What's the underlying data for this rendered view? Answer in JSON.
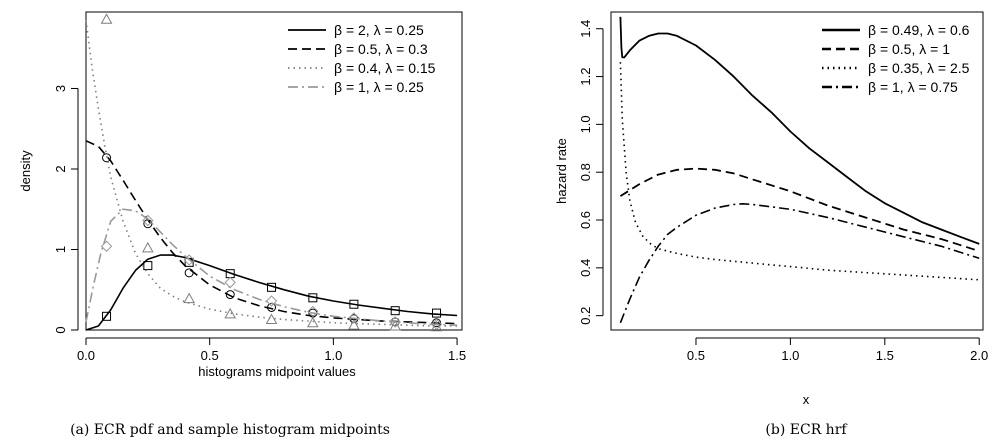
{
  "chart_data": [
    {
      "type": "line",
      "caption": "(a) ECR pdf and sample histogram midpoints",
      "xlabel": "histograms midpoint values",
      "ylabel": "density",
      "xlim": [
        0,
        1.52
      ],
      "ylim": [
        0,
        3.95
      ],
      "xticks": [
        0.0,
        0.5,
        1.0,
        1.5
      ],
      "xtick_labels": [
        "0.0",
        "0.5",
        "1.0",
        "1.5"
      ],
      "yticks": [
        0,
        1,
        2,
        3
      ],
      "ytick_labels": [
        "0",
        "1",
        "2",
        "3"
      ],
      "legend_position": "top-right",
      "series": [
        {
          "name": "β = 2, λ = 0.25",
          "color": "#000000",
          "style": "solid",
          "x": [
            0.0,
            0.05,
            0.1,
            0.15,
            0.2,
            0.25,
            0.3,
            0.35,
            0.4,
            0.5,
            0.6,
            0.7,
            0.8,
            0.9,
            1.0,
            1.1,
            1.2,
            1.3,
            1.4,
            1.5
          ],
          "y": [
            0.0,
            0.05,
            0.25,
            0.52,
            0.74,
            0.88,
            0.93,
            0.93,
            0.9,
            0.8,
            0.69,
            0.59,
            0.5,
            0.42,
            0.36,
            0.31,
            0.27,
            0.23,
            0.2,
            0.18
          ],
          "points": {
            "marker": "square",
            "x": [
              0.083,
              0.25,
              0.417,
              0.583,
              0.75,
              0.917,
              1.083,
              1.25,
              1.417
            ],
            "y": [
              0.17,
              0.8,
              0.84,
              0.7,
              0.53,
              0.4,
              0.32,
              0.24,
              0.21
            ]
          }
        },
        {
          "name": "β = 0.5, λ = 0.3",
          "color": "#000000",
          "style": "dashed",
          "x": [
            0.0,
            0.05,
            0.1,
            0.15,
            0.2,
            0.25,
            0.3,
            0.35,
            0.4,
            0.5,
            0.6,
            0.7,
            0.8,
            0.9,
            1.0,
            1.1,
            1.2,
            1.3,
            1.4,
            1.5
          ],
          "y": [
            2.35,
            2.28,
            2.1,
            1.86,
            1.61,
            1.37,
            1.15,
            0.96,
            0.8,
            0.56,
            0.4,
            0.3,
            0.23,
            0.18,
            0.15,
            0.13,
            0.11,
            0.1,
            0.09,
            0.08
          ],
          "points": {
            "marker": "circle",
            "x": [
              0.083,
              0.25,
              0.417,
              0.583,
              0.75,
              0.917,
              1.083,
              1.25,
              1.417
            ],
            "y": [
              2.14,
              1.32,
              0.71,
              0.44,
              0.28,
              0.21,
              0.14,
              0.1,
              0.09
            ]
          }
        },
        {
          "name": "β = 0.4, λ = 0.15",
          "color": "#7f7f7f",
          "style": "dotted",
          "x": [
            0.0,
            0.025,
            0.05,
            0.075,
            0.1,
            0.15,
            0.2,
            0.25,
            0.3,
            0.35,
            0.4,
            0.5,
            0.6,
            0.7,
            0.8,
            0.9,
            1.0,
            1.1,
            1.2,
            1.3,
            1.4,
            1.5
          ],
          "y": [
            3.85,
            3.25,
            2.75,
            2.3,
            1.9,
            1.35,
            0.95,
            0.7,
            0.52,
            0.42,
            0.35,
            0.26,
            0.2,
            0.16,
            0.13,
            0.11,
            0.09,
            0.08,
            0.07,
            0.06,
            0.05,
            0.05
          ],
          "points": {
            "marker": "triangle",
            "x": [
              0.083,
              0.25,
              0.417,
              0.583,
              0.75,
              0.917,
              1.083,
              1.25,
              1.417
            ],
            "y": [
              3.86,
              1.02,
              0.39,
              0.2,
              0.13,
              0.09,
              0.06,
              0.05,
              0.04
            ]
          }
        },
        {
          "name": "β = 1, λ = 0.25",
          "color": "#9a9a9a",
          "style": "dashdot",
          "x": [
            0.0,
            0.03,
            0.06,
            0.1,
            0.15,
            0.2,
            0.25,
            0.3,
            0.35,
            0.4,
            0.5,
            0.6,
            0.7,
            0.8,
            0.9,
            1.0,
            1.1,
            1.2,
            1.3,
            1.4,
            1.5
          ],
          "y": [
            0.1,
            0.55,
            0.95,
            1.35,
            1.5,
            1.48,
            1.38,
            1.22,
            1.06,
            0.92,
            0.67,
            0.5,
            0.38,
            0.29,
            0.22,
            0.17,
            0.14,
            0.11,
            0.09,
            0.07,
            0.06
          ],
          "points": {
            "marker": "diamond",
            "x": [
              0.083,
              0.25,
              0.417,
              0.583,
              0.75,
              0.917,
              1.083,
              1.25,
              1.417
            ],
            "y": [
              1.04,
              1.36,
              0.87,
              0.59,
              0.36,
              0.23,
              0.15,
              0.1,
              0.07
            ]
          }
        }
      ]
    },
    {
      "type": "line",
      "caption": "(b) ECR hrf",
      "xlabel": "x",
      "ylabel": "hazard rate",
      "xlim": [
        0.05,
        2.02
      ],
      "ylim": [
        0.14,
        1.47
      ],
      "xticks": [
        0.5,
        1.0,
        1.5,
        2.0
      ],
      "xtick_labels": [
        "0.5",
        "1.0",
        "1.5",
        "2.0"
      ],
      "yticks": [
        0.2,
        0.4,
        0.6,
        0.8,
        1.0,
        1.2,
        1.4
      ],
      "ytick_labels": [
        "0.2",
        "0.4",
        "0.6",
        "0.8",
        "1.0",
        "1.2",
        "1.4"
      ],
      "legend_position": "top-right",
      "series": [
        {
          "name": "β = 0.49, λ = 0.6",
          "color": "#000000",
          "style": "solid",
          "x": [
            0.1,
            0.105,
            0.11,
            0.12,
            0.15,
            0.2,
            0.25,
            0.3,
            0.35,
            0.4,
            0.5,
            0.6,
            0.7,
            0.8,
            0.9,
            1.0,
            1.1,
            1.2,
            1.3,
            1.4,
            1.5,
            1.6,
            1.7,
            1.8,
            1.9,
            2.0
          ],
          "y": [
            1.45,
            1.32,
            1.28,
            1.28,
            1.31,
            1.35,
            1.37,
            1.38,
            1.38,
            1.37,
            1.33,
            1.27,
            1.2,
            1.12,
            1.05,
            0.97,
            0.9,
            0.84,
            0.78,
            0.72,
            0.67,
            0.63,
            0.59,
            0.56,
            0.53,
            0.5
          ]
        },
        {
          "name": "β = 0.5, λ = 1",
          "color": "#000000",
          "style": "dashed",
          "x": [
            0.1,
            0.2,
            0.3,
            0.4,
            0.5,
            0.6,
            0.7,
            0.8,
            0.9,
            1.0,
            1.2,
            1.4,
            1.6,
            1.8,
            2.0
          ],
          "y": [
            0.7,
            0.75,
            0.79,
            0.81,
            0.815,
            0.81,
            0.795,
            0.77,
            0.745,
            0.72,
            0.66,
            0.61,
            0.56,
            0.52,
            0.47
          ]
        },
        {
          "name": "β = 0.35, λ = 2.5",
          "color": "#000000",
          "style": "dotted",
          "x": [
            0.1,
            0.11,
            0.13,
            0.15,
            0.18,
            0.22,
            0.26,
            0.3,
            0.35,
            0.4,
            0.5,
            0.6,
            0.8,
            1.0,
            1.2,
            1.5,
            1.8,
            2.0
          ],
          "y": [
            1.26,
            1.02,
            0.8,
            0.68,
            0.59,
            0.53,
            0.5,
            0.48,
            0.47,
            0.46,
            0.445,
            0.435,
            0.42,
            0.405,
            0.39,
            0.375,
            0.36,
            0.35
          ]
        },
        {
          "name": "β = 1, λ = 0.75",
          "color": "#000000",
          "style": "dashdot",
          "x": [
            0.1,
            0.15,
            0.2,
            0.25,
            0.3,
            0.35,
            0.4,
            0.5,
            0.6,
            0.7,
            0.75,
            0.8,
            0.9,
            1.0,
            1.2,
            1.4,
            1.6,
            1.8,
            2.0
          ],
          "y": [
            0.17,
            0.27,
            0.36,
            0.43,
            0.49,
            0.54,
            0.57,
            0.62,
            0.65,
            0.665,
            0.668,
            0.665,
            0.655,
            0.645,
            0.61,
            0.57,
            0.53,
            0.49,
            0.44
          ]
        }
      ]
    }
  ]
}
